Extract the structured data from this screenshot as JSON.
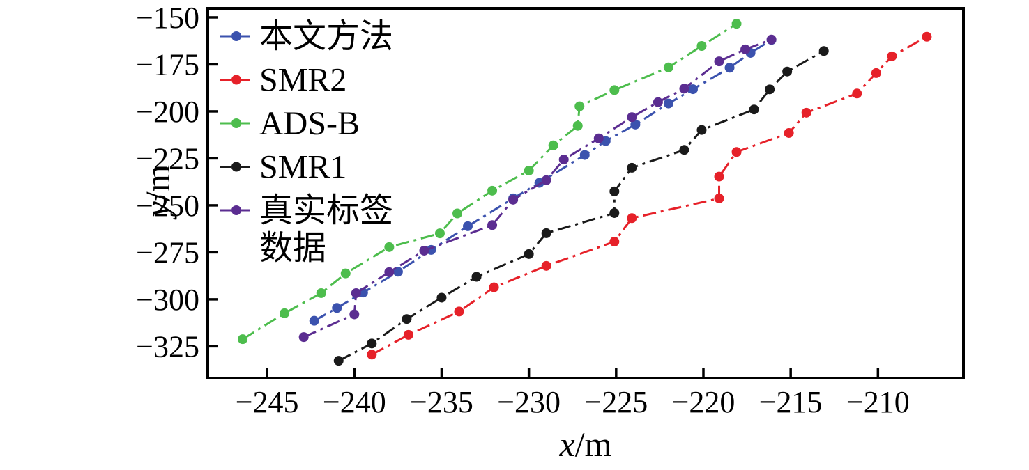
{
  "figure": {
    "background": "#ffffff",
    "axis_color": "#000000"
  },
  "chart_data": {
    "type": "line",
    "title": "",
    "xlabel": "x/m",
    "ylabel": "y/m",
    "xlim": [
      -248.4,
      -205.1
    ],
    "ylim": [
      -341.9,
      -145.2
    ],
    "x_ticks": [
      -245,
      -240,
      -235,
      -230,
      -225,
      -220,
      -215,
      -210
    ],
    "y_ticks": [
      -150,
      -175,
      -200,
      -225,
      -250,
      -275,
      -300,
      -325
    ],
    "grid": false,
    "line_style": "dash-dot",
    "marker": "circle",
    "legend_position": "upper left",
    "series": [
      {
        "name": "本文方法",
        "color": "#3b52ae",
        "points": [
          [
            -242.3,
            -311.4
          ],
          [
            -241.0,
            -304.6
          ],
          [
            -239.5,
            -296.4
          ],
          [
            -237.5,
            -285.3
          ],
          [
            -235.6,
            -273.7
          ],
          [
            -233.5,
            -261.1
          ],
          [
            -230.9,
            -246.3
          ],
          [
            -229.4,
            -238.0
          ],
          [
            -226.8,
            -223.2
          ],
          [
            -225.6,
            -215.8
          ],
          [
            -223.9,
            -207.0
          ],
          [
            -222.0,
            -195.8
          ],
          [
            -220.6,
            -188.2
          ],
          [
            -218.5,
            -176.8
          ],
          [
            -217.3,
            -168.9
          ],
          [
            -216.1,
            -162.0
          ]
        ]
      },
      {
        "name": "SMR2",
        "color": "#e62129",
        "points": [
          [
            -239.0,
            -329.4
          ],
          [
            -236.9,
            -318.9
          ],
          [
            -234.0,
            -306.5
          ],
          [
            -232.0,
            -293.6
          ],
          [
            -229.0,
            -282.2
          ],
          [
            -225.1,
            -269.3
          ],
          [
            -224.1,
            -256.8
          ],
          [
            -219.1,
            -246.3
          ],
          [
            -219.1,
            -234.7
          ],
          [
            -218.1,
            -221.6
          ],
          [
            -215.1,
            -211.5
          ],
          [
            -214.1,
            -200.7
          ],
          [
            -211.2,
            -190.5
          ],
          [
            -210.1,
            -179.6
          ],
          [
            -209.2,
            -170.7
          ],
          [
            -207.2,
            -160.3
          ]
        ]
      },
      {
        "name": "ADS-B",
        "color": "#4dbd4d",
        "points": [
          [
            -246.4,
            -321.2
          ],
          [
            -244.0,
            -307.4
          ],
          [
            -241.9,
            -296.7
          ],
          [
            -240.5,
            -286.2
          ],
          [
            -238.0,
            -272.2
          ],
          [
            -235.1,
            -264.9
          ],
          [
            -234.1,
            -254.3
          ],
          [
            -232.1,
            -242.2
          ],
          [
            -230.0,
            -231.5
          ],
          [
            -228.6,
            -218.1
          ],
          [
            -227.2,
            -207.7
          ],
          [
            -227.1,
            -197.3
          ],
          [
            -225.1,
            -188.7
          ],
          [
            -222.0,
            -176.6
          ],
          [
            -220.1,
            -165.2
          ],
          [
            -218.1,
            -153.4
          ]
        ]
      },
      {
        "name": "SMR1",
        "color": "#1a1a1a",
        "points": [
          [
            -240.9,
            -332.7
          ],
          [
            -239.0,
            -323.5
          ],
          [
            -237.0,
            -310.5
          ],
          [
            -235.0,
            -299.1
          ],
          [
            -233.0,
            -288.0
          ],
          [
            -230.0,
            -275.9
          ],
          [
            -229.0,
            -264.8
          ],
          [
            -225.1,
            -254.1
          ],
          [
            -225.1,
            -242.6
          ],
          [
            -224.1,
            -230.0
          ],
          [
            -221.1,
            -220.5
          ],
          [
            -220.1,
            -209.9
          ],
          [
            -217.1,
            -199.0
          ],
          [
            -216.2,
            -188.3
          ],
          [
            -215.2,
            -178.8
          ],
          [
            -213.1,
            -167.9
          ]
        ]
      },
      {
        "name": "真实标签数据",
        "color": "#5b2d91",
        "points": [
          [
            -242.9,
            -320.1
          ],
          [
            -240.0,
            -308.0
          ],
          [
            -239.9,
            -296.7
          ],
          [
            -238.0,
            -285.5
          ],
          [
            -236.0,
            -274.1
          ],
          [
            -232.1,
            -260.5
          ],
          [
            -230.9,
            -247.0
          ],
          [
            -229.0,
            -236.6
          ],
          [
            -228.0,
            -225.6
          ],
          [
            -226.0,
            -214.4
          ],
          [
            -224.1,
            -203.1
          ],
          [
            -222.6,
            -195.1
          ],
          [
            -221.1,
            -187.9
          ],
          [
            -219.1,
            -173.4
          ],
          [
            -217.6,
            -167.0
          ],
          [
            -216.1,
            -161.8
          ]
        ]
      }
    ]
  },
  "legend": {
    "items": [
      {
        "label_lines": [
          "本文方法"
        ],
        "color": "#3b52ae"
      },
      {
        "label_lines": [
          "SMR2"
        ],
        "color": "#e62129"
      },
      {
        "label_lines": [
          "ADS-B"
        ],
        "color": "#4dbd4d"
      },
      {
        "label_lines": [
          "SMR1"
        ],
        "color": "#1a1a1a"
      },
      {
        "label_lines": [
          "真实标签",
          "数据"
        ],
        "color": "#5b2d91"
      }
    ]
  }
}
